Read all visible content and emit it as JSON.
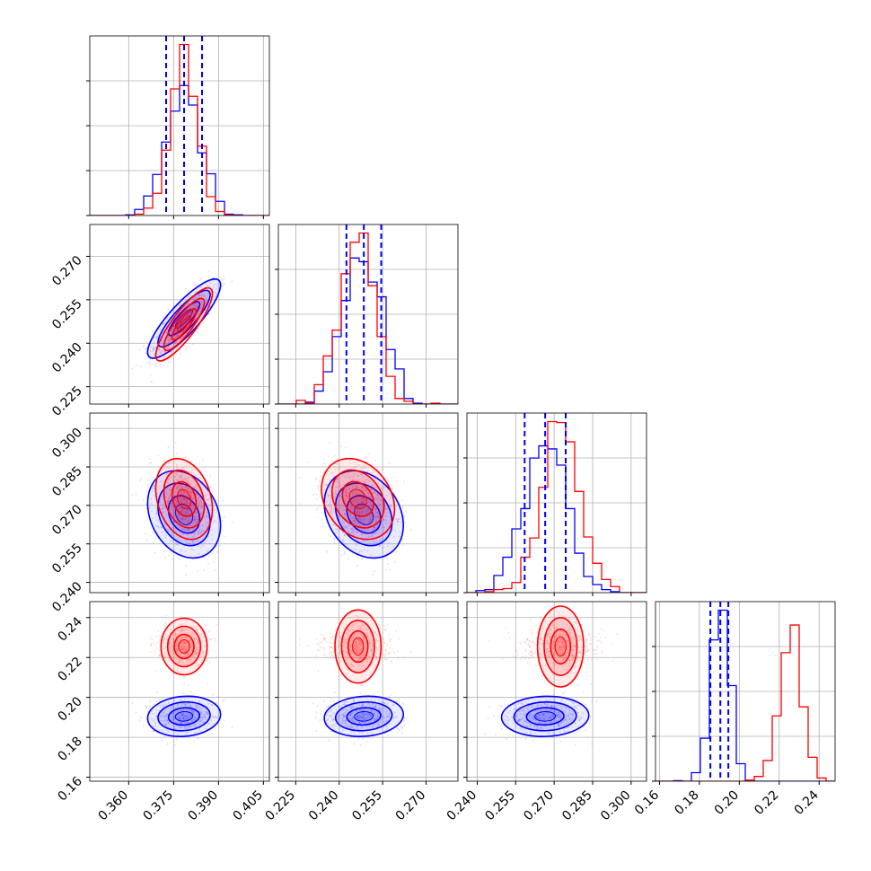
{
  "colors": {
    "series_a": "#0000ff",
    "series_b": "#ff0000",
    "grid": "#b0b0b0",
    "frame": "#000000"
  },
  "chart_data": {
    "type": "corner",
    "grid": true,
    "legend": "none",
    "parameters": [
      {
        "range": [
          0.347,
          0.407
        ],
        "ticks": [
          "0.360",
          "0.375",
          "0.390",
          "0.405"
        ],
        "tick_values": [
          0.36,
          0.375,
          0.39,
          0.405
        ]
      },
      {
        "range": [
          0.219,
          0.281
        ],
        "ticks": [
          "0.225",
          "0.240",
          "0.255",
          "0.270"
        ],
        "tick_values": [
          0.225,
          0.24,
          0.255,
          0.27
        ]
      },
      {
        "range": [
          0.236,
          0.306
        ],
        "ticks": [
          "0.240",
          "0.255",
          "0.270",
          "0.285",
          "0.300"
        ],
        "tick_values": [
          0.24,
          0.255,
          0.27,
          0.285,
          0.3
        ]
      },
      {
        "range": [
          0.158,
          0.248
        ],
        "ticks": [
          "0.16",
          "0.18",
          "0.20",
          "0.22",
          "0.24"
        ],
        "tick_values": [
          0.16,
          0.18,
          0.2,
          0.22,
          0.24
        ]
      }
    ],
    "quantile_lines": [
      [
        0.3725,
        0.3785,
        0.3845
      ],
      [
        0.2425,
        0.2485,
        0.2545
      ],
      [
        0.2585,
        0.2665,
        0.2745
      ],
      [
        0.1855,
        0.1905,
        0.1945
      ]
    ],
    "series": [
      {
        "color": "#0000ff",
        "mean": [
          0.3785,
          0.2485,
          0.2665,
          0.1905
        ],
        "std": [
          0.0058,
          0.0065,
          0.0081,
          0.0048
        ],
        "corr": [
          [
            1.0,
            0.85,
            -0.25,
            0.1
          ],
          [
            0.85,
            1.0,
            -0.25,
            0.1
          ],
          [
            -0.25,
            -0.25,
            1.0,
            0.05
          ],
          [
            0.1,
            0.1,
            0.05,
            1.0
          ]
        ]
      },
      {
        "color": "#ff0000",
        "mean": [
          0.3785,
          0.2465,
          0.2725,
          0.2255
        ],
        "std": [
          0.0045,
          0.006,
          0.0075,
          0.0055
        ],
        "corr": [
          [
            1.0,
            0.85,
            -0.25,
            0.0
          ],
          [
            0.85,
            1.0,
            -0.25,
            0.0
          ],
          [
            -0.25,
            -0.25,
            1.0,
            0.0
          ],
          [
            0.0,
            0.0,
            0.0,
            1.0
          ]
        ]
      }
    ]
  }
}
